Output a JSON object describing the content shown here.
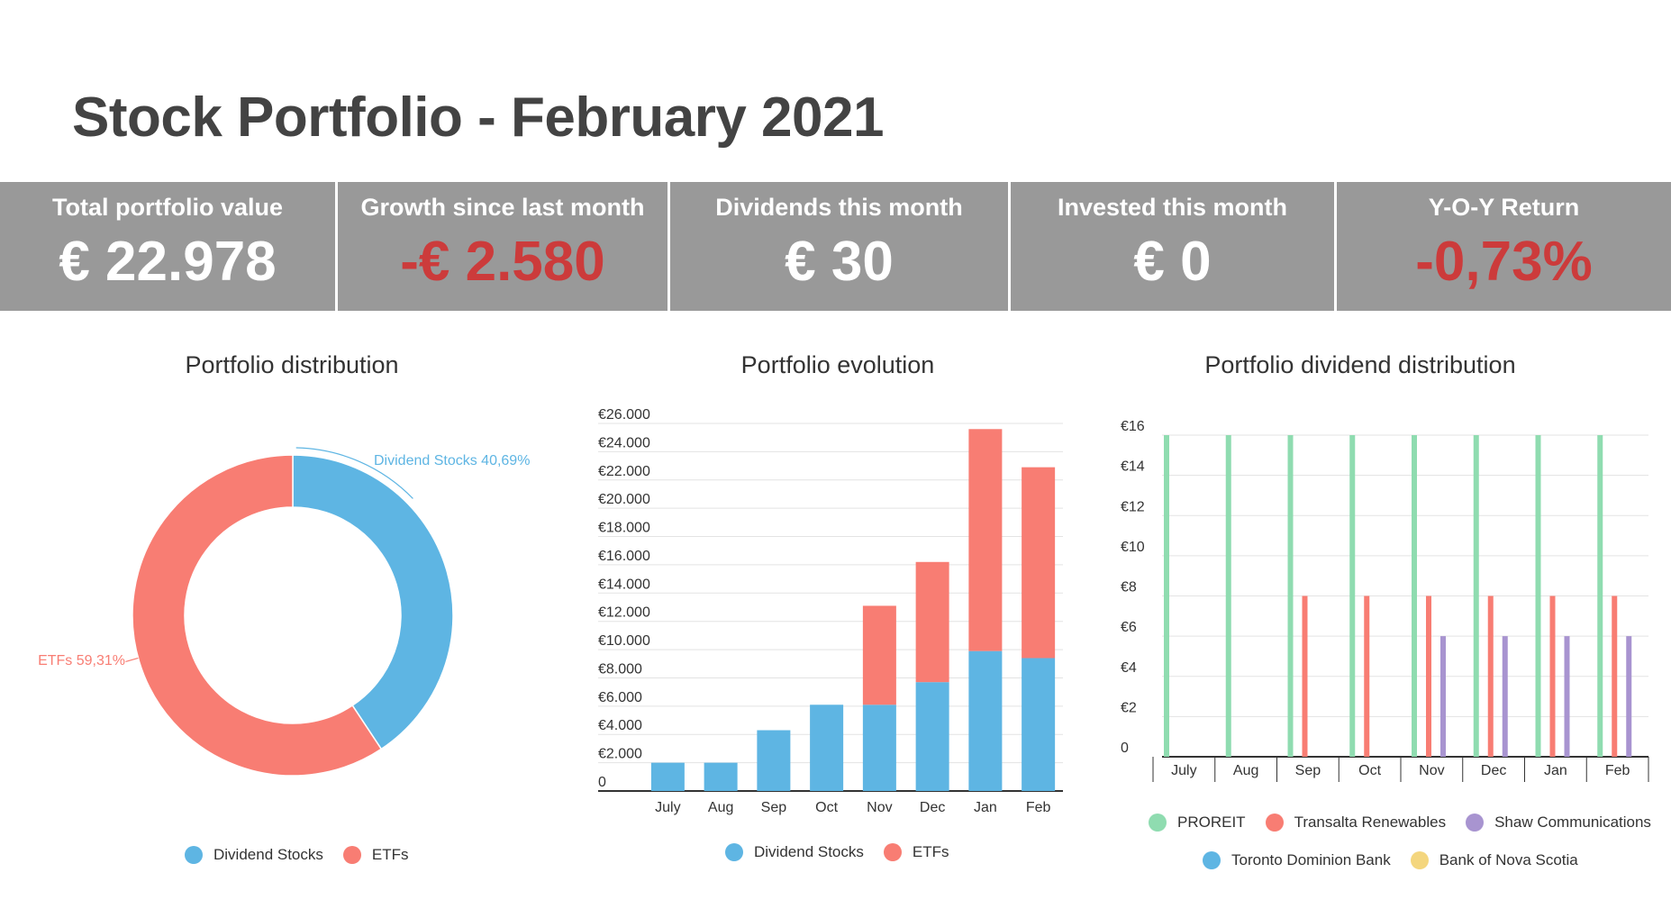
{
  "title": "Stock Portfolio - February 2021",
  "kpis": [
    {
      "label": "Total portfolio value",
      "value": "€ 22.978",
      "color": "#ffffff"
    },
    {
      "label": "Growth since last month",
      "value": "-€ 2.580",
      "color": "#cc3b3b"
    },
    {
      "label": "Dividends this month",
      "value": "€ 30",
      "color": "#ffffff"
    },
    {
      "label": "Invested this month",
      "value": "€ 0",
      "color": "#ffffff"
    },
    {
      "label": "Y-O-Y Return",
      "value": "-0,73%",
      "color": "#cc3b3b"
    }
  ],
  "colors": {
    "dividend_stocks": "#5eb5e3",
    "etfs": "#f87d73",
    "proreit": "#8fdcb0",
    "transalta": "#f87d73",
    "shaw": "#a894d0",
    "toronto": "#5eb5e3",
    "nova_scotia": "#f4d67e"
  },
  "chart_data": [
    {
      "type": "pie",
      "title": "Portfolio distribution",
      "slices": [
        {
          "name": "Dividend Stocks",
          "value": 40.69,
          "label": "Dividend Stocks 40,69%"
        },
        {
          "name": "ETFs",
          "value": 59.31,
          "label": "ETFs 59,31%"
        }
      ],
      "legend": [
        "Dividend Stocks",
        "ETFs"
      ],
      "legend_position": "bottom"
    },
    {
      "type": "bar",
      "stacked": true,
      "title": "Portfolio evolution",
      "categories": [
        "July",
        "Aug",
        "Sep",
        "Oct",
        "Nov",
        "Dec",
        "Jan",
        "Feb"
      ],
      "series": [
        {
          "name": "Dividend Stocks",
          "values": [
            2000,
            2000,
            4300,
            6100,
            6100,
            7700,
            9900,
            9400
          ]
        },
        {
          "name": "ETFs",
          "values": [
            0,
            0,
            0,
            0,
            7000,
            8500,
            15700,
            13500
          ]
        }
      ],
      "yticks": [
        "0",
        "€2.000",
        "€4.000",
        "€6.000",
        "€8.000",
        "€10.000",
        "€12.000",
        "€14.000",
        "€16.000",
        "€18.000",
        "€20.000",
        "€22.000",
        "€24.000",
        "€26.000"
      ],
      "ylim": [
        0,
        26000
      ],
      "legend": [
        "Dividend Stocks",
        "ETFs"
      ],
      "legend_position": "bottom"
    },
    {
      "type": "bar",
      "title": "Portfolio dividend distribution",
      "categories": [
        "July",
        "Aug",
        "Sep",
        "Oct",
        "Nov",
        "Dec",
        "Jan",
        "Feb"
      ],
      "series": [
        {
          "name": "PROREIT",
          "values": [
            16,
            16,
            16,
            16,
            16,
            16,
            16,
            16
          ]
        },
        {
          "name": "Transalta Renewables",
          "values": [
            0,
            0,
            8,
            8,
            8,
            8,
            8,
            8
          ]
        },
        {
          "name": "Shaw Communications",
          "values": [
            0,
            0,
            0,
            0,
            6,
            6,
            6,
            6
          ]
        },
        {
          "name": "Toronto Dominion Bank",
          "values": [
            0,
            0,
            0,
            0,
            0,
            0,
            0,
            0
          ]
        },
        {
          "name": "Bank of Nova Scotia",
          "values": [
            0,
            0,
            0,
            0,
            0,
            0,
            0,
            0
          ]
        }
      ],
      "yticks": [
        "0",
        "€2",
        "€4",
        "€6",
        "€8",
        "€10",
        "€12",
        "€14",
        "€16"
      ],
      "ylim": [
        0,
        16
      ],
      "legend": [
        "PROREIT",
        "Transalta Renewables",
        "Shaw Communications",
        "Toronto Dominion Bank",
        "Bank of Nova Scotia"
      ],
      "legend_position": "bottom"
    }
  ]
}
